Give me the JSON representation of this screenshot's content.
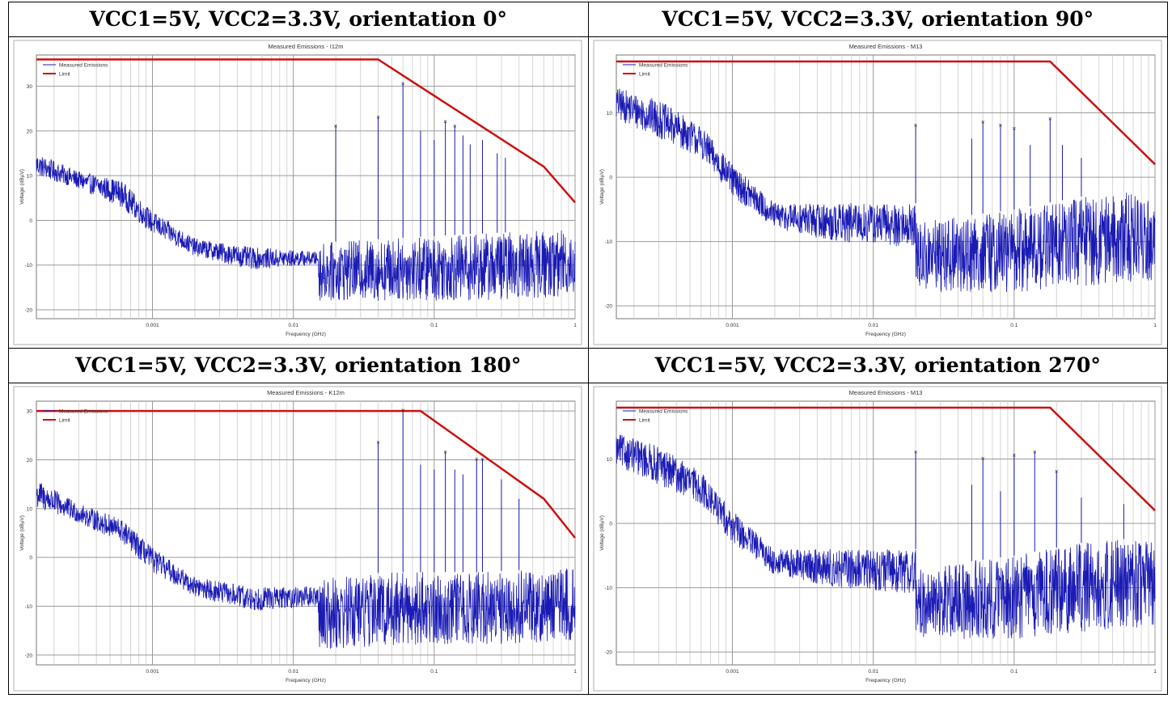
{
  "headers": [
    "VCC1=5V, VCC2=3.3V, orientation 0°",
    "VCC1=5V, VCC2=3.3V, orientation 90°",
    "VCC1=5V, VCC2=3.3V, orientation 180°",
    "VCC1=5V, VCC2=3.3V, orientation 270°"
  ],
  "colors": {
    "emissions": "#1a1ab4",
    "limit": "#cc1111",
    "grid": "#9a9a9a",
    "border": "#000000"
  },
  "chart_data": [
    {
      "type": "line",
      "title": "Measured Emissions - I12m",
      "xlabel": "Frequency (GHz)",
      "ylabel": "Voltage (dBµV)",
      "xscale": "log",
      "xlim": [
        0.00015,
        1
      ],
      "ylim": [
        -22,
        37
      ],
      "xticks": [
        0.001,
        0.01,
        0.1,
        1
      ],
      "xtick_labels": [
        "0.001",
        "0.01",
        "0.1",
        "1"
      ],
      "yticks": [
        -20,
        -10,
        0,
        10,
        20,
        30
      ],
      "yticks_labels": [
        "-20",
        "-10",
        "0",
        "10",
        "20",
        "30"
      ],
      "grid": true,
      "legend_position": "top-left",
      "series": [
        {
          "name": "Measured Emissions",
          "color": "#1a1ab4",
          "envelope": [
            [
              0.00015,
              15,
              10
            ],
            [
              0.0003,
              11,
              7
            ],
            [
              0.0006,
              9,
              3
            ],
            [
              0.001,
              2,
              -3
            ],
            [
              0.002,
              -4,
              -8
            ],
            [
              0.005,
              -6,
              -11
            ],
            [
              0.015,
              -7,
              -10
            ],
            [
              0.0151,
              -5,
              -18
            ],
            [
              0.05,
              -4,
              -18
            ],
            [
              0.2,
              -3,
              -18
            ],
            [
              1,
              -2,
              -17
            ]
          ],
          "peaks": [
            [
              0.02,
              21
            ],
            [
              0.04,
              23
            ],
            [
              0.06,
              30.5
            ],
            [
              0.12,
              22
            ],
            [
              0.14,
              21
            ],
            [
              0.08,
              20
            ],
            [
              0.1,
              18
            ],
            [
              0.16,
              19
            ],
            [
              0.18,
              17
            ],
            [
              0.22,
              18
            ],
            [
              0.28,
              15
            ],
            [
              0.32,
              14
            ]
          ]
        },
        {
          "name": "Limit",
          "color": "#cc1111",
          "points": [
            [
              0.00015,
              36
            ],
            [
              0.04,
              36
            ],
            [
              0.6,
              12
            ],
            [
              1,
              4
            ]
          ]
        }
      ],
      "markers": [
        [
          0.02,
          21
        ],
        [
          0.04,
          23
        ],
        [
          0.06,
          30.5
        ],
        [
          0.12,
          22
        ],
        [
          0.14,
          21
        ]
      ]
    },
    {
      "type": "line",
      "title": "Measured Emissions - M13",
      "xlabel": "Frequency (GHz)",
      "ylabel": "Voltage (dBµV)",
      "xscale": "log",
      "xlim": [
        0.00015,
        1
      ],
      "ylim": [
        -22,
        19
      ],
      "xticks": [
        0.001,
        0.01,
        0.1,
        1
      ],
      "xtick_labels": [
        "0.001",
        "0.01",
        "0.1",
        "1"
      ],
      "yticks": [
        -20,
        -10,
        0,
        10
      ],
      "yticks_labels": [
        "-20",
        "-10",
        "0",
        "10"
      ],
      "grid": true,
      "legend_position": "top-left",
      "series": [
        {
          "name": "Measured Emissions",
          "color": "#1a1ab4",
          "envelope": [
            [
              0.00015,
              14,
              9
            ],
            [
              0.0003,
              12,
              6
            ],
            [
              0.0006,
              8,
              3
            ],
            [
              0.001,
              2,
              -3
            ],
            [
              0.002,
              -4,
              -8
            ],
            [
              0.005,
              -4,
              -10
            ],
            [
              0.02,
              -4,
              -11
            ],
            [
              0.0201,
              -7,
              -18
            ],
            [
              0.1,
              -5,
              -18
            ],
            [
              0.3,
              -3,
              -17
            ],
            [
              1,
              -2,
              -16
            ]
          ],
          "peaks": [
            [
              0.02,
              8
            ],
            [
              0.06,
              8.5
            ],
            [
              0.08,
              8
            ],
            [
              0.1,
              7.5
            ],
            [
              0.18,
              9
            ],
            [
              0.05,
              6
            ],
            [
              0.13,
              5
            ],
            [
              0.22,
              5
            ],
            [
              0.3,
              3
            ]
          ]
        },
        {
          "name": "Limit",
          "color": "#cc1111",
          "points": [
            [
              0.00015,
              18
            ],
            [
              0.18,
              18
            ],
            [
              1,
              2
            ]
          ]
        }
      ],
      "markers": [
        [
          0.02,
          8
        ],
        [
          0.06,
          8.5
        ],
        [
          0.08,
          8
        ],
        [
          0.1,
          7.5
        ],
        [
          0.18,
          9
        ]
      ]
    },
    {
      "type": "line",
      "title": "Measured Emissions - K12m",
      "xlabel": "Frequency (GHz)",
      "ylabel": "Voltage (dBµV)",
      "xscale": "log",
      "xlim": [
        0.00015,
        1
      ],
      "ylim": [
        -22,
        32
      ],
      "xticks": [
        0.001,
        0.01,
        0.1,
        1
      ],
      "xtick_labels": [
        "0.001",
        "0.01",
        "0.1",
        "1"
      ],
      "yticks": [
        -20,
        -10,
        0,
        10,
        20,
        30
      ],
      "yticks_labels": [
        "-20",
        "-10",
        "0",
        "10",
        "20",
        "30"
      ],
      "grid": true,
      "legend_position": "top-left",
      "series": [
        {
          "name": "Measured Emissions",
          "color": "#1a1ab4",
          "envelope": [
            [
              0.00015,
              16,
              10
            ],
            [
              0.0003,
              11,
              7
            ],
            [
              0.0006,
              8,
              3
            ],
            [
              0.001,
              2,
              -3
            ],
            [
              0.002,
              -4,
              -8
            ],
            [
              0.005,
              -6,
              -11
            ],
            [
              0.015,
              -6,
              -10
            ],
            [
              0.0151,
              -4,
              -19
            ],
            [
              0.05,
              -3,
              -18
            ],
            [
              0.2,
              -3,
              -18
            ],
            [
              1,
              -2,
              -17
            ]
          ],
          "peaks": [
            [
              0.04,
              23.5
            ],
            [
              0.06,
              30
            ],
            [
              0.12,
              21.5
            ],
            [
              0.2,
              20
            ],
            [
              0.22,
              20
            ],
            [
              0.08,
              19
            ],
            [
              0.1,
              18
            ],
            [
              0.14,
              18
            ],
            [
              0.16,
              17
            ],
            [
              0.3,
              16
            ],
            [
              0.4,
              12
            ]
          ]
        },
        {
          "name": "Limit",
          "color": "#cc1111",
          "points": [
            [
              0.00015,
              30
            ],
            [
              0.08,
              30
            ],
            [
              0.6,
              12
            ],
            [
              1,
              4
            ]
          ]
        }
      ],
      "markers": [
        [
          0.04,
          23.5
        ],
        [
          0.06,
          30
        ],
        [
          0.12,
          21.5
        ],
        [
          0.2,
          20
        ],
        [
          0.22,
          20
        ]
      ]
    },
    {
      "type": "line",
      "title": "Measured Emissions - M13",
      "xlabel": "Frequency (GHz)",
      "ylabel": "Voltage (dBµV)",
      "xscale": "log",
      "xlim": [
        0.00015,
        1
      ],
      "ylim": [
        -22,
        19
      ],
      "xticks": [
        0.001,
        0.01,
        0.1,
        1
      ],
      "xtick_labels": [
        "0.001",
        "0.01",
        "0.1",
        "1"
      ],
      "yticks": [
        -20,
        -10,
        0,
        10
      ],
      "yticks_labels": [
        "-20",
        "-10",
        "0",
        "10"
      ],
      "grid": true,
      "legend_position": "top-left",
      "series": [
        {
          "name": "Measured Emissions",
          "color": "#1a1ab4",
          "envelope": [
            [
              0.00015,
              14,
              9
            ],
            [
              0.0003,
              12,
              6
            ],
            [
              0.0006,
              8,
              3
            ],
            [
              0.001,
              2,
              -3
            ],
            [
              0.002,
              -4,
              -8
            ],
            [
              0.005,
              -4,
              -10
            ],
            [
              0.02,
              -4,
              -11
            ],
            [
              0.0201,
              -7,
              -18
            ],
            [
              0.1,
              -5,
              -18
            ],
            [
              0.3,
              -3,
              -17
            ],
            [
              1,
              -2,
              -16
            ]
          ],
          "peaks": [
            [
              0.02,
              11
            ],
            [
              0.06,
              10
            ],
            [
              0.1,
              10.5
            ],
            [
              0.14,
              11
            ],
            [
              0.2,
              8
            ],
            [
              0.05,
              6
            ],
            [
              0.08,
              5
            ],
            [
              0.3,
              4
            ],
            [
              0.6,
              3
            ]
          ]
        },
        {
          "name": "Limit",
          "color": "#cc1111",
          "points": [
            [
              0.00015,
              18
            ],
            [
              0.18,
              18
            ],
            [
              1,
              2
            ]
          ]
        }
      ],
      "markers": [
        [
          0.02,
          11
        ],
        [
          0.06,
          10
        ],
        [
          0.1,
          10.5
        ],
        [
          0.14,
          11
        ],
        [
          0.2,
          8
        ]
      ]
    }
  ]
}
